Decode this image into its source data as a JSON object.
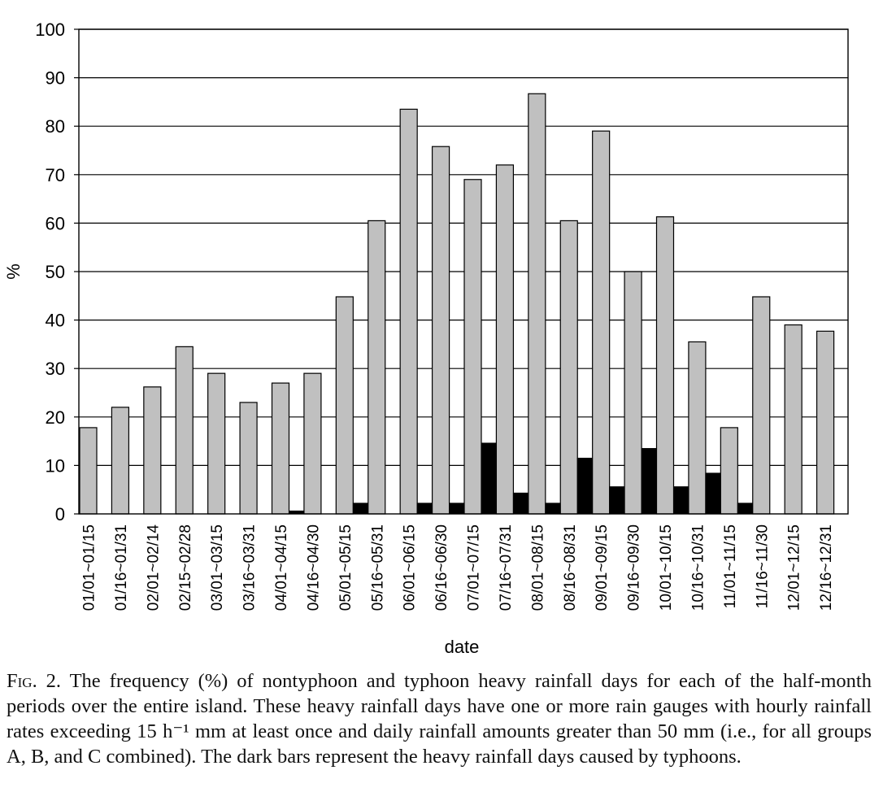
{
  "chart_data": {
    "type": "bar",
    "xlabel": "date",
    "ylabel": "%",
    "ylim": [
      0,
      100
    ],
    "yticks": [
      0,
      10,
      20,
      30,
      40,
      50,
      60,
      70,
      80,
      90,
      100
    ],
    "grid": true,
    "categories": [
      "01/01~01/15",
      "01/16~01/31",
      "02/01~02/14",
      "02/15~02/28",
      "03/01~03/15",
      "03/16~03/31",
      "04/01~04/15",
      "04/16~04/30",
      "05/01~05/15",
      "05/16~05/31",
      "06/01~06/15",
      "06/16~06/30",
      "07/01~07/15",
      "07/16~07/31",
      "08/01~08/15",
      "08/16~08/31",
      "09/01~09/15",
      "09/16~09/30",
      "10/01~10/15",
      "10/16~10/31",
      "11/01~11/15",
      "11/16~11/30",
      "12/01~12/15",
      "12/16~12/31"
    ],
    "series": [
      {
        "color": "#c0c0c0",
        "values": [
          17.8,
          22,
          26.2,
          34.5,
          29,
          23,
          27,
          29,
          44.8,
          60.5,
          83.5,
          75.8,
          69,
          72,
          86.7,
          60.5,
          79,
          50,
          61.3,
          35.5,
          17.8,
          44.8,
          39,
          37.7
        ]
      },
      {
        "color": "#000000",
        "values": [
          0,
          0,
          0,
          0,
          0,
          0,
          0.6,
          0,
          2.2,
          0,
          2.2,
          2.2,
          14.6,
          4.3,
          2.2,
          11.5,
          5.6,
          13.5,
          5.6,
          8.4,
          2.2,
          0,
          0,
          0
        ]
      }
    ]
  },
  "caption": {
    "fig_label": "Fig. 2.",
    "text": "The frequency (%) of nontyphoon and typhoon heavy rainfall days for each of the half-month periods over the entire island. These heavy rainfall days have one or more rain gauges with hourly rainfall rates exceeding 15 h⁻¹ mm at least once and daily rainfall amounts greater than 50 mm (i.e., for all groups A, B, and C combined). The dark bars represent the heavy rainfall days caused by typhoons."
  }
}
